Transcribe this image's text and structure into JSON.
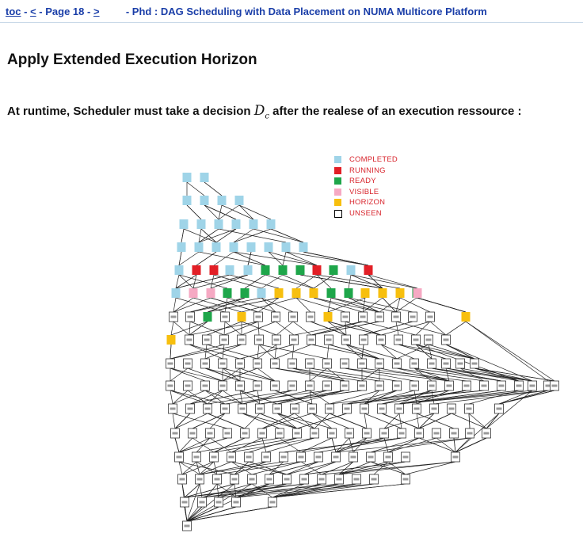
{
  "nav": {
    "toc": "toc",
    "prev": "<",
    "page": "Page 18",
    "next": ">",
    "title": "- Phd : DAG Scheduling with Data Placement on NUMA Multicore Platform"
  },
  "heading": "Apply Extended Execution Horizon",
  "sentence": {
    "before": "At runtime, Scheduler must take a decision ",
    "var": "D",
    "sub": "c",
    "after": " after the realese of an execution ressource :"
  },
  "legend": [
    {
      "label": "COMPLETED",
      "color": "#9fd4e8"
    },
    {
      "label": "RUNNING",
      "color": "#e21f26"
    },
    {
      "label": "READY",
      "color": "#1ea64a"
    },
    {
      "label": "VISIBLE",
      "color": "#f6a9c3"
    },
    {
      "label": "HORIZON",
      "color": "#f7bf0e"
    },
    {
      "label": "UNSEEN",
      "color": "#ffffff",
      "border": "#000000"
    }
  ],
  "dag": {
    "levels": [
      "CC",
      "CCCC",
      "CCCCCC",
      "CCCCCCCC",
      "CRRCCGGGRGCR",
      "CPPGGCHHHGGHHHGP",
      "UUGUHUUUUHUUUUUUH",
      "HUUUUUUUUUUUUUUUU",
      "UUUUUUUUUUUUUUUUUUU",
      "UUUUUUUUUUUUUUUUUUUUUUUU",
      "UUUUUUUUUUUUUUUUUUU",
      "UUUUUUUUUUUUUUUUUUU",
      "UUUUUUUUUUUUUUU",
      "UUUUUUUUUUUUU",
      "UUUUU",
      "U"
    ]
  }
}
